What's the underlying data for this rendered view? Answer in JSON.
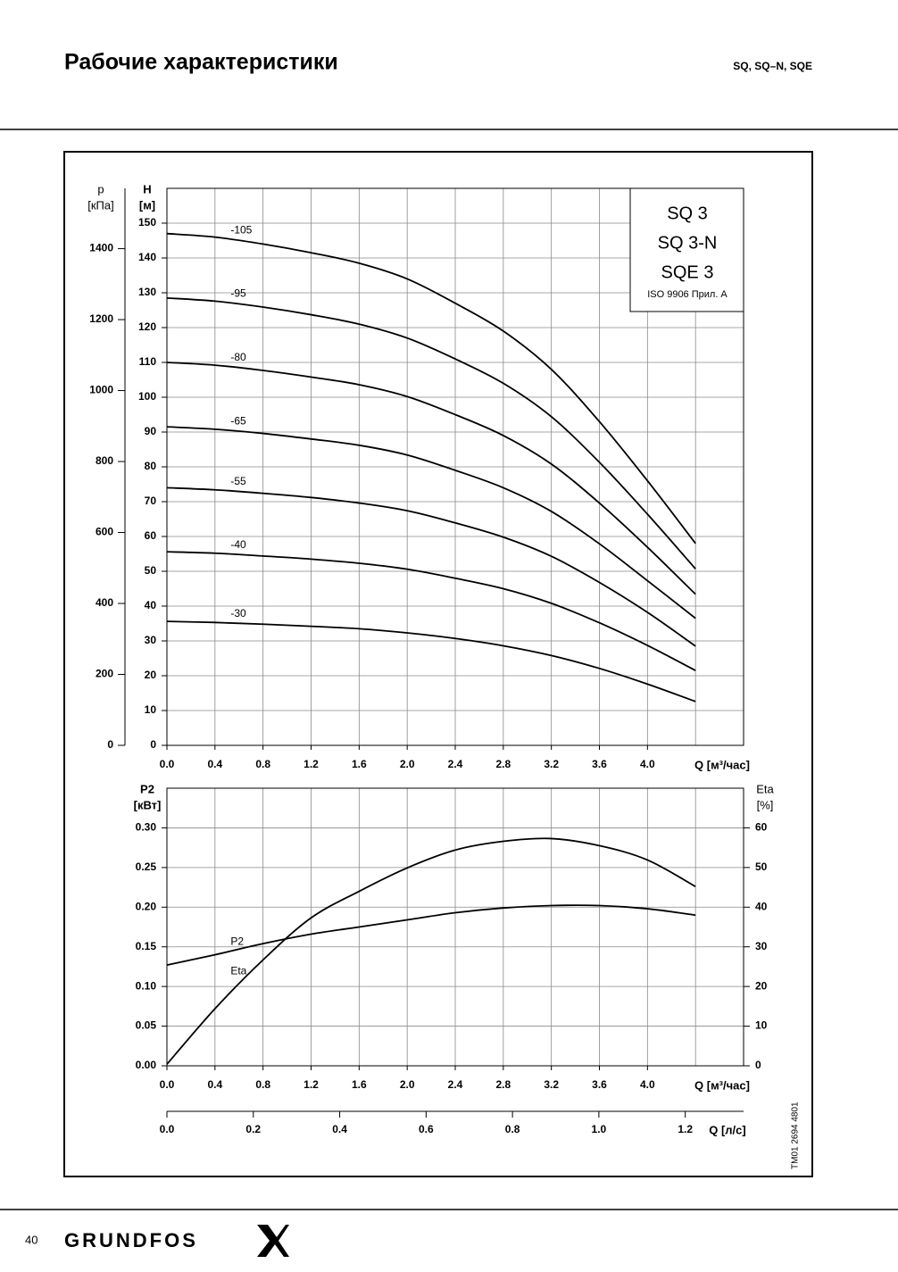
{
  "header": {
    "title": "Рабочие характеристики",
    "models": "SQ, SQ–N, SQE"
  },
  "chart_data": [
    {
      "type": "line",
      "xlabel": "Q [м³/час]",
      "ylabel": [
        "H",
        "[м]"
      ],
      "y2label": [
        "p",
        "[кПа]"
      ],
      "y2side": "left",
      "xlim": [
        0,
        4.8
      ],
      "xticks": [
        {
          "value": 0,
          "label": "0.0"
        },
        0.4,
        0.8,
        1.2,
        1.6,
        {
          "value": 2,
          "label": "2.0"
        },
        2.4,
        2.8,
        3.2,
        3.6,
        {
          "value": 4,
          "label": "4.0"
        }
      ],
      "xgrid": [
        0.4,
        0.8,
        1.2,
        1.6,
        2.0,
        2.4,
        2.8,
        3.2,
        3.6,
        4.0,
        4.4
      ],
      "ylim": [
        0,
        160
      ],
      "yticks": [
        0,
        10,
        20,
        30,
        40,
        50,
        60,
        70,
        80,
        90,
        100,
        110,
        120,
        130,
        140,
        150
      ],
      "y2lim": [
        0,
        1570
      ],
      "y2ticks": [
        0,
        200,
        400,
        600,
        800,
        1000,
        1200,
        1400
      ],
      "grid": true,
      "model_box": [
        "SQ 3",
        "SQ 3-N",
        "SQE 3"
      ],
      "standard": "ISO 9906 Прил. A",
      "x": [
        0,
        0.4,
        0.8,
        1.2,
        1.6,
        2.0,
        2.4,
        2.8,
        3.2,
        3.6,
        4.0,
        4.4
      ],
      "series": [
        {
          "name": "-105",
          "color": "#000000",
          "values": [
            147,
            146,
            144,
            141.5,
            138.5,
            134,
            127,
            119,
            108,
            93,
            76,
            58
          ]
        },
        {
          "name": "-95",
          "color": "#000000",
          "values": [
            128.5,
            127.6,
            125.9,
            123.7,
            121,
            117,
            111,
            104,
            94.4,
            81.3,
            66.4,
            50.7
          ]
        },
        {
          "name": "-80",
          "color": "#000000",
          "values": [
            110,
            109.2,
            107.7,
            105.8,
            103.6,
            100.2,
            95,
            89,
            80.8,
            69.6,
            56.9,
            43.4
          ]
        },
        {
          "name": "-65",
          "color": "#000000",
          "values": [
            91.5,
            90.8,
            89.6,
            88,
            86.2,
            83.4,
            79,
            74,
            67.2,
            57.9,
            47.3,
            36.5
          ]
        },
        {
          "name": "-55",
          "color": "#000000",
          "values": [
            74,
            73.4,
            72.4,
            71.2,
            69.6,
            67.4,
            63.9,
            59.8,
            54.3,
            46.8,
            38.2,
            28.5
          ]
        },
        {
          "name": "-40",
          "color": "#000000",
          "values": [
            55.6,
            55.2,
            54.4,
            53.5,
            52.3,
            50.6,
            48,
            45,
            40.8,
            35.2,
            28.7,
            21.5
          ]
        },
        {
          "name": "-30",
          "color": "#000000",
          "values": [
            35.6,
            35.3,
            34.8,
            34.2,
            33.5,
            32.3,
            30.7,
            28.6,
            25.8,
            22.1,
            17.6,
            12.6
          ]
        }
      ]
    },
    {
      "type": "line",
      "xlabel": "Q [м³/час]",
      "ylabel": [
        "P2",
        "[кВт]"
      ],
      "y2label": [
        "Eta",
        "[%]"
      ],
      "y2side": "right",
      "xlim": [
        0,
        4.8
      ],
      "xticks": [
        {
          "value": 0,
          "label": "0.0"
        },
        0.4,
        0.8,
        1.2,
        1.6,
        {
          "value": 2,
          "label": "2.0"
        },
        2.4,
        2.8,
        3.2,
        3.6,
        {
          "value": 4,
          "label": "4.0"
        }
      ],
      "xgrid": [
        0.4,
        0.8,
        1.2,
        1.6,
        2.0,
        2.4,
        2.8,
        3.2,
        3.6,
        4.0,
        4.4
      ],
      "ylim": [
        0,
        0.35
      ],
      "yticks": [
        {
          "value": 0,
          "label": "0.00"
        },
        {
          "value": 0.05,
          "label": "0.05"
        },
        {
          "value": 0.1,
          "label": "0.10"
        },
        {
          "value": 0.15,
          "label": "0.15"
        },
        {
          "value": 0.2,
          "label": "0.20"
        },
        {
          "value": 0.25,
          "label": "0.25"
        },
        {
          "value": 0.3,
          "label": "0.30"
        }
      ],
      "y2lim": [
        0,
        70
      ],
      "y2ticks": [
        0,
        10,
        20,
        30,
        40,
        50,
        60
      ],
      "grid": true,
      "x2label": "Q [л/с]",
      "x2lim": [
        0,
        1.335
      ],
      "x2ticks": [
        {
          "value": 0,
          "label": "0.0"
        },
        0.2,
        0.4,
        0.6,
        0.8,
        {
          "value": 1,
          "label": "1.0"
        },
        1.2
      ],
      "x": [
        0,
        0.4,
        0.8,
        1.2,
        1.6,
        2.0,
        2.4,
        2.8,
        3.2,
        3.6,
        4.0,
        4.4
      ],
      "series": [
        {
          "name": "P2",
          "color": "#000000",
          "values": [
            0.127,
            0.14,
            0.154,
            0.166,
            0.175,
            0.184,
            0.193,
            0.199,
            0.202,
            0.202,
            0.198,
            0.19
          ]
        },
        {
          "name": "Eta",
          "color": "#000000",
          "axis": "y2",
          "values": [
            0.4,
            14.4,
            26.7,
            37.3,
            44,
            49.9,
            54.4,
            56.6,
            57.3,
            55.5,
            51.9,
            45.2
          ]
        }
      ]
    }
  ],
  "footer": {
    "page": "40",
    "brand": "GRUNDFOS",
    "code": "TM01 2694 4801"
  }
}
